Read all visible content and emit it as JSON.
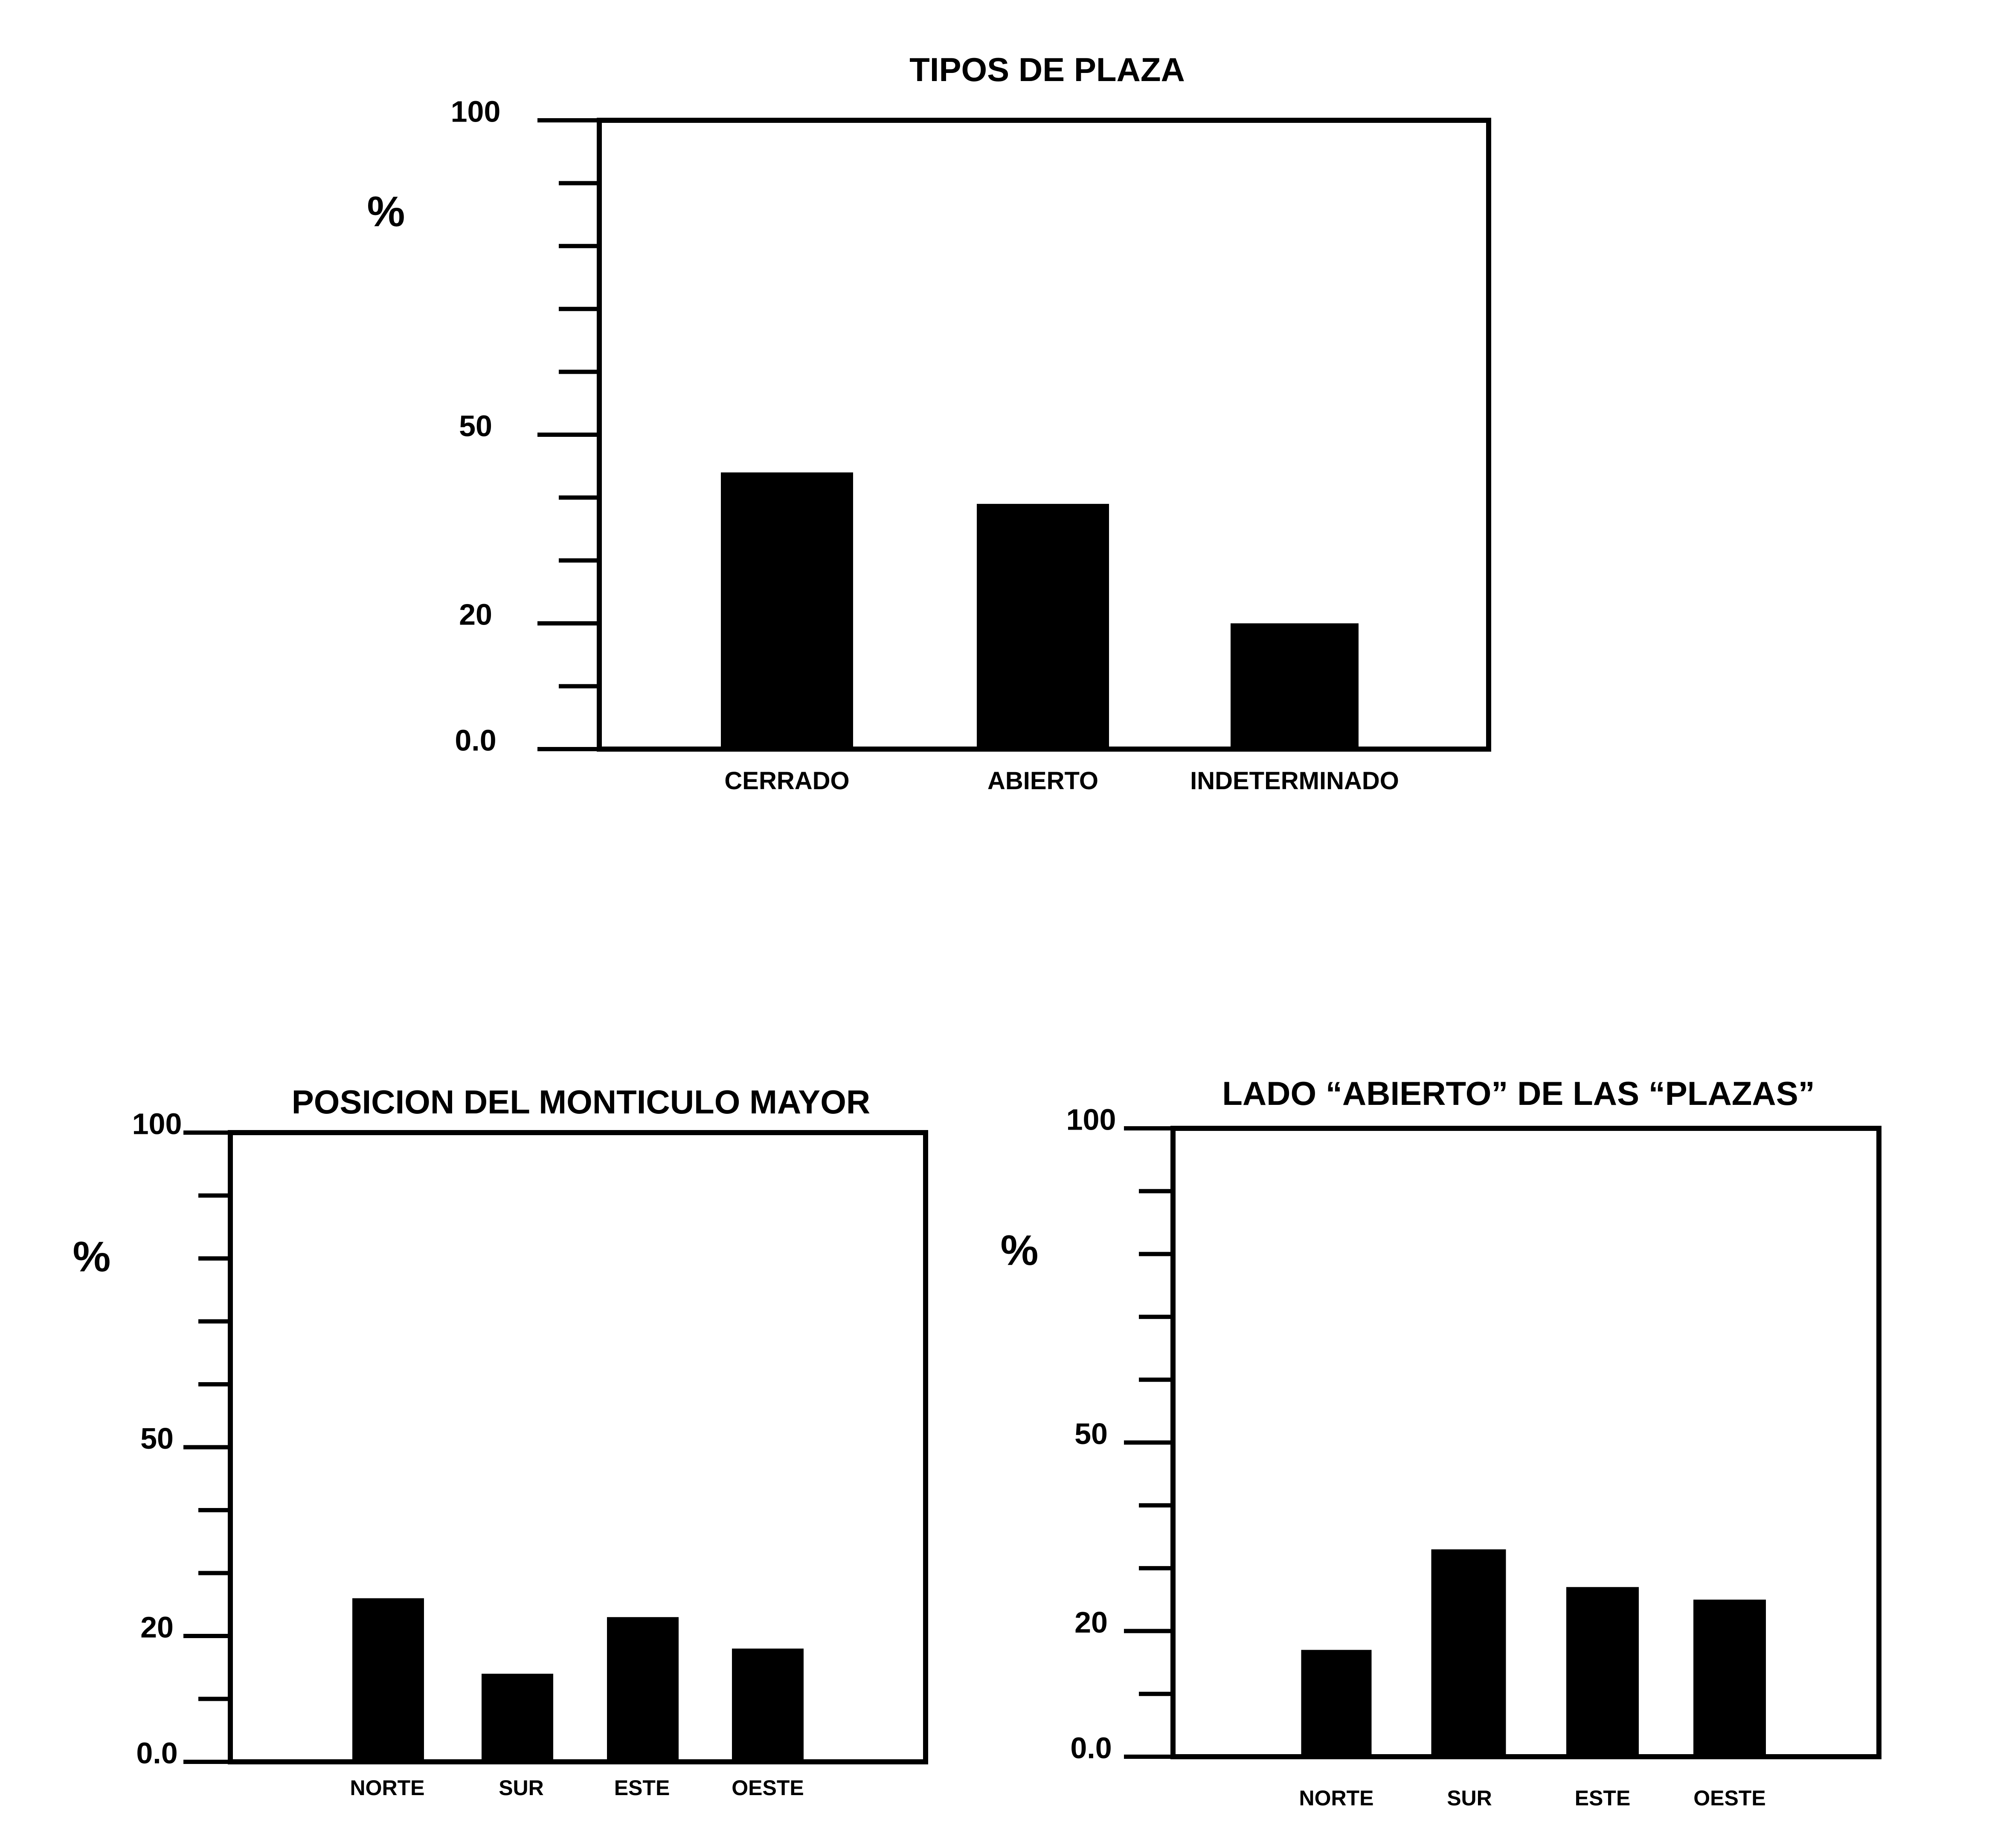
{
  "chart_data": [
    {
      "type": "bar",
      "title": "TIPOS DE PLAZA",
      "ylabel": "%",
      "categories": [
        "CERRADO",
        "ABIERTO",
        "INDETERMINADO"
      ],
      "values": [
        44,
        39,
        20
      ],
      "ylim": [
        0,
        100
      ],
      "ytick_labels": [
        "0.0",
        "20",
        "50",
        "100"
      ],
      "bar_color": "#000000",
      "grid": false
    },
    {
      "type": "bar",
      "title": "POSICION DEL MONTICULO MAYOR",
      "ylabel": "%",
      "categories": [
        "NORTE",
        "SUR",
        "ESTE",
        "OESTE"
      ],
      "values": [
        26,
        14,
        23,
        18
      ],
      "ylim": [
        0,
        100
      ],
      "ytick_labels": [
        "0.0",
        "20",
        "50",
        "100"
      ],
      "bar_color": "#000000",
      "grid": false
    },
    {
      "type": "bar",
      "title": "LADO “ABIERTO” DE LAS “PLAZAS”",
      "ylabel": "%",
      "categories": [
        "NORTE",
        "SUR",
        "ESTE",
        "OESTE"
      ],
      "values": [
        17,
        33,
        27,
        25
      ],
      "ylim": [
        0,
        100
      ],
      "ytick_labels": [
        "0.0",
        "20",
        "50",
        "100"
      ],
      "bar_color": "#000000",
      "grid": false
    }
  ]
}
